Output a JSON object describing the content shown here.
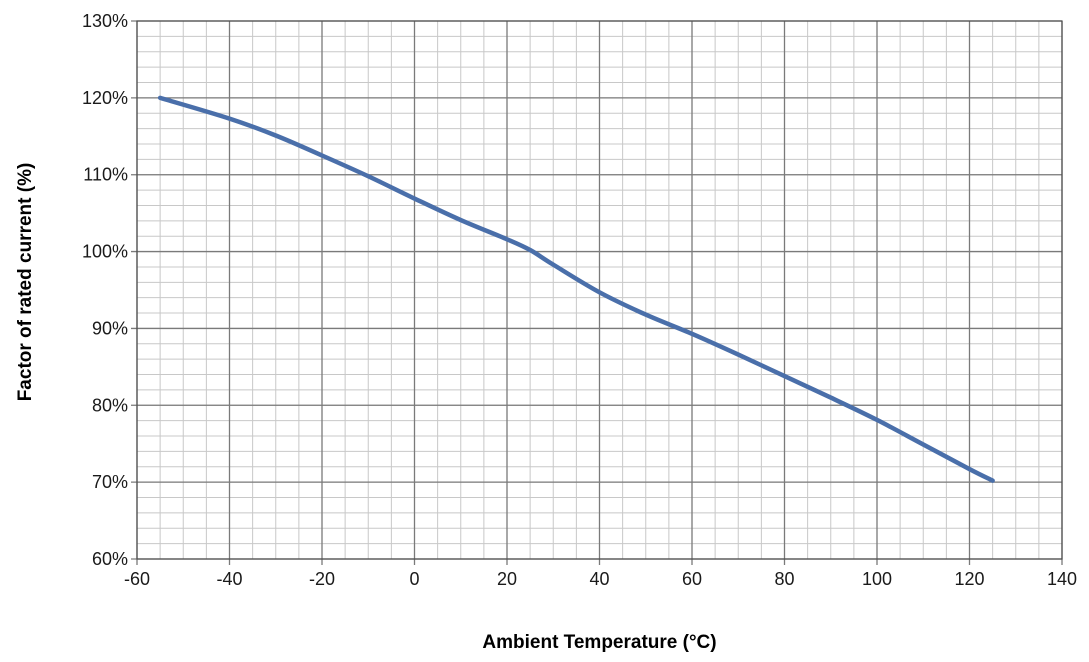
{
  "chart_data": {
    "type": "line",
    "title": "",
    "xlabel": "Ambient Temperature (°C)",
    "ylabel": "Factor of rated current (%)",
    "xlim": [
      -60,
      140
    ],
    "ylim": [
      60,
      130
    ],
    "x_ticks": [
      -60,
      -40,
      -20,
      0,
      20,
      40,
      60,
      80,
      100,
      120,
      140
    ],
    "x_tick_labels": [
      "-60",
      "-40",
      "-20",
      "0",
      "20",
      "40",
      "60",
      "80",
      "100",
      "120",
      "140"
    ],
    "y_ticks": [
      60,
      70,
      80,
      90,
      100,
      110,
      120,
      130
    ],
    "y_tick_labels": [
      "60%",
      "70%",
      "80%",
      "90%",
      "100%",
      "110%",
      "120%",
      "130%"
    ],
    "grid": true,
    "minor_grid": {
      "x_step": 5,
      "y_step": 2
    },
    "series": [
      {
        "color": "#4a6faa",
        "x": [
          -55,
          -40,
          -30,
          -20,
          -10,
          0,
          10,
          20,
          25,
          30,
          40,
          50,
          60,
          70,
          80,
          90,
          100,
          110,
          120,
          125
        ],
        "y": [
          120,
          117.3,
          115.1,
          112.5,
          109.8,
          106.9,
          104.1,
          101.6,
          100.2,
          98.3,
          94.7,
          91.8,
          89.3,
          86.6,
          83.8,
          81.0,
          78.1,
          74.9,
          71.7,
          70.2
        ]
      }
    ]
  }
}
